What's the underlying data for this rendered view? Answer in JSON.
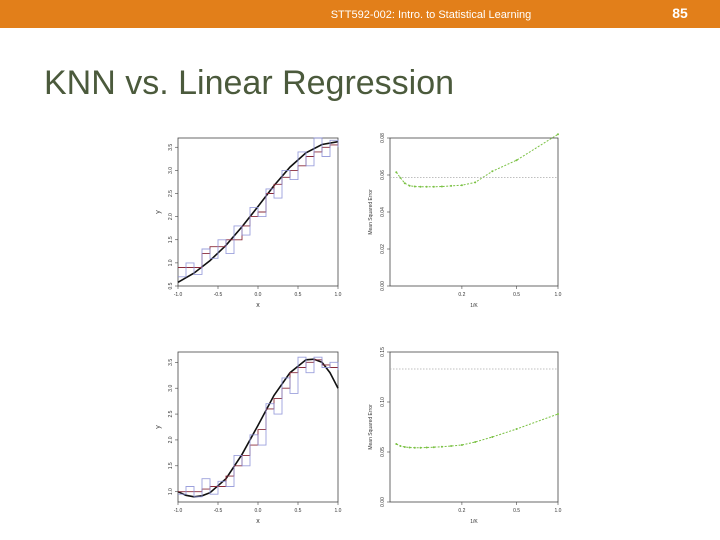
{
  "header": {
    "text": "STT592-002: Intro. to Statistical Learning",
    "page_number": "85"
  },
  "slide": {
    "title": "KNN vs. Linear Regression"
  },
  "colors": {
    "accent_bar": "#e27f1a",
    "title": "#4b5a3c",
    "knn_fit": "#8a2b3a",
    "knn_noisy": "#8a8fd6",
    "true_curve": "#111111",
    "mse": "#7ac143",
    "ls_line": "#aaaaaa"
  },
  "chart_data": [
    {
      "type": "line",
      "panel": "top-left",
      "xlabel": "x",
      "ylabel": "y",
      "xlim": [
        -1.0,
        1.0
      ],
      "ylim": [
        0.5,
        3.7
      ],
      "xticks": [
        "-1.0",
        "-0.5",
        "0.0",
        "0.5",
        "1.0"
      ],
      "yticks": [
        "0.5",
        "1.0",
        "1.5",
        "2.0",
        "2.5",
        "3.0",
        "3.5"
      ],
      "series": [
        {
          "role": "true-function",
          "x": [
            -1.0,
            -0.8,
            -0.6,
            -0.4,
            -0.2,
            0.0,
            0.2,
            0.4,
            0.6,
            0.8,
            1.0
          ],
          "y": [
            0.58,
            0.78,
            1.05,
            1.38,
            1.78,
            2.22,
            2.67,
            3.07,
            3.38,
            3.56,
            3.62
          ]
        },
        {
          "role": "knn-k9",
          "x": [
            -1.0,
            -0.9,
            -0.8,
            -0.7,
            -0.6,
            -0.5,
            -0.4,
            -0.3,
            -0.2,
            -0.1,
            0.0,
            0.1,
            0.2,
            0.3,
            0.4,
            0.5,
            0.6,
            0.7,
            0.8,
            0.9,
            1.0
          ],
          "y": [
            0.9,
            0.9,
            0.9,
            1.2,
            1.35,
            1.35,
            1.5,
            1.5,
            1.8,
            2.0,
            2.1,
            2.5,
            2.7,
            2.85,
            3.0,
            3.1,
            3.3,
            3.4,
            3.5,
            3.55,
            3.6
          ]
        },
        {
          "role": "knn-k1",
          "x": [
            -1.0,
            -0.9,
            -0.8,
            -0.7,
            -0.6,
            -0.5,
            -0.4,
            -0.3,
            -0.2,
            -0.1,
            0.0,
            0.1,
            0.2,
            0.3,
            0.4,
            0.5,
            0.6,
            0.7,
            0.8,
            0.9,
            1.0
          ],
          "y": [
            0.7,
            1.0,
            0.75,
            1.3,
            1.1,
            1.5,
            1.2,
            1.8,
            1.6,
            2.2,
            2.0,
            2.6,
            2.4,
            3.0,
            2.8,
            3.4,
            3.1,
            3.7,
            3.3,
            3.65,
            3.5
          ]
        }
      ]
    },
    {
      "type": "line",
      "panel": "top-right",
      "xlabel": "1/K",
      "ylabel": "Mean Squared Error",
      "xscale": "log",
      "xlim": [
        0.06,
        1.0
      ],
      "ylim": [
        0.0,
        0.08
      ],
      "xticks": [
        "0.2",
        "0.5",
        "1.0"
      ],
      "yticks": [
        "0.00",
        "0.02",
        "0.04",
        "0.06",
        "0.08"
      ],
      "series": [
        {
          "role": "knn-test-mse",
          "x": [
            0.0667,
            0.0714,
            0.0769,
            0.0833,
            0.0909,
            0.1,
            0.111,
            0.125,
            0.143,
            0.167,
            0.2,
            0.25,
            0.333,
            0.5,
            1.0
          ],
          "y": [
            0.0615,
            0.0585,
            0.0555,
            0.0542,
            0.0538,
            0.0536,
            0.0536,
            0.0536,
            0.0538,
            0.0541,
            0.0545,
            0.056,
            0.062,
            0.068,
            0.082
          ]
        },
        {
          "role": "linear-regression-mse",
          "x": [
            0.06,
            1.0
          ],
          "y": [
            0.0586,
            0.0586
          ]
        }
      ]
    },
    {
      "type": "line",
      "panel": "bottom-left",
      "xlabel": "x",
      "ylabel": "y",
      "xlim": [
        -1.0,
        1.0
      ],
      "ylim": [
        0.8,
        3.7
      ],
      "xticks": [
        "-1.0",
        "-0.5",
        "0.0",
        "0.5",
        "1.0"
      ],
      "yticks": [
        "1.0",
        "1.5",
        "2.0",
        "2.5",
        "3.0",
        "3.5"
      ],
      "series": [
        {
          "role": "true-function",
          "x": [
            -1.0,
            -0.9,
            -0.8,
            -0.7,
            -0.6,
            -0.4,
            -0.2,
            0.0,
            0.2,
            0.4,
            0.6,
            0.7,
            0.8,
            0.9,
            1.0
          ],
          "y": [
            1.0,
            0.93,
            0.9,
            0.92,
            0.98,
            1.25,
            1.72,
            2.28,
            2.86,
            3.3,
            3.55,
            3.56,
            3.5,
            3.3,
            3.0
          ]
        },
        {
          "role": "knn-k9",
          "x": [
            -1.0,
            -0.9,
            -0.8,
            -0.7,
            -0.6,
            -0.5,
            -0.4,
            -0.3,
            -0.2,
            -0.1,
            0.0,
            0.1,
            0.2,
            0.3,
            0.4,
            0.5,
            0.6,
            0.7,
            0.8,
            0.9,
            1.0
          ],
          "y": [
            1.0,
            1.0,
            1.0,
            1.05,
            1.1,
            1.1,
            1.3,
            1.5,
            1.7,
            1.9,
            2.2,
            2.6,
            2.8,
            3.0,
            3.3,
            3.4,
            3.5,
            3.55,
            3.45,
            3.4,
            3.4
          ]
        },
        {
          "role": "knn-k1",
          "x": [
            -1.0,
            -0.9,
            -0.8,
            -0.7,
            -0.6,
            -0.5,
            -0.4,
            -0.3,
            -0.2,
            -0.1,
            0.0,
            0.1,
            0.2,
            0.3,
            0.4,
            0.5,
            0.6,
            0.7,
            0.8,
            0.9,
            1.0
          ],
          "y": [
            0.95,
            1.1,
            0.9,
            1.25,
            0.95,
            1.2,
            1.1,
            1.7,
            1.5,
            2.1,
            1.9,
            2.7,
            2.5,
            3.2,
            2.9,
            3.6,
            3.3,
            3.6,
            3.4,
            3.5,
            3.35
          ]
        }
      ]
    },
    {
      "type": "line",
      "panel": "bottom-right",
      "xlabel": "1/K",
      "ylabel": "Mean Squared Error",
      "xscale": "log",
      "xlim": [
        0.06,
        1.0
      ],
      "ylim": [
        0.0,
        0.15
      ],
      "xticks": [
        "0.2",
        "0.5",
        "1.0"
      ],
      "yticks": [
        "0.00",
        "0.05",
        "0.10",
        "0.15"
      ],
      "series": [
        {
          "role": "knn-test-mse",
          "x": [
            0.0667,
            0.0714,
            0.0769,
            0.0833,
            0.0909,
            0.1,
            0.111,
            0.125,
            0.143,
            0.167,
            0.2,
            0.25,
            0.333,
            0.5,
            1.0
          ],
          "y": [
            0.058,
            0.056,
            0.055,
            0.0545,
            0.0543,
            0.0543,
            0.0545,
            0.0548,
            0.0553,
            0.056,
            0.057,
            0.06,
            0.065,
            0.073,
            0.088
          ]
        },
        {
          "role": "linear-regression-mse",
          "x": [
            0.06,
            1.0
          ],
          "y": [
            0.133,
            0.133
          ]
        }
      ]
    }
  ]
}
